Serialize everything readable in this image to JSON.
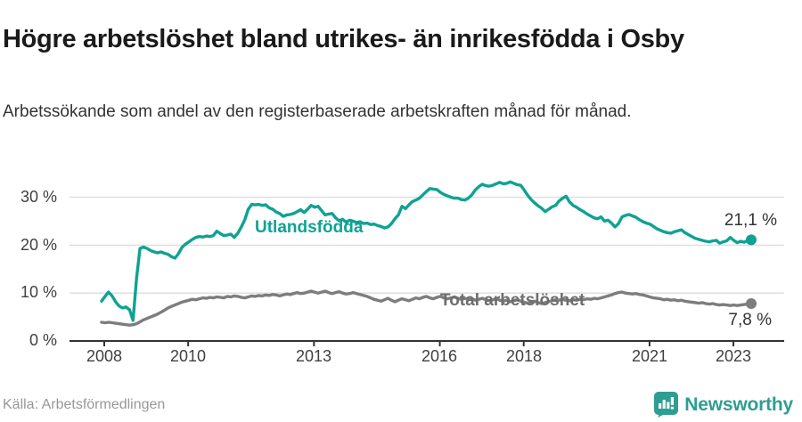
{
  "header": {
    "title": "Högre arbetslöshet bland utrikes- än inrikesfödda i Osby",
    "subtitle": "Arbetssökande som andel av den registerbaserade arbetskraften månad för månad."
  },
  "footer": {
    "source": "Källa: Arbetsförmedlingen",
    "brand_name": "Newsworthy"
  },
  "colors": {
    "series_foreign_born": "#0fa294",
    "series_total": "#7d7d7d",
    "axis": "#333333",
    "gridline": "#dcdcdc",
    "brand_teal": "#2e9d92"
  },
  "chart_data": {
    "type": "line",
    "title": "Högre arbetslöshet bland utrikes- än inrikesfödda i Osby",
    "subtitle": "Arbetssökande som andel av den registerbaserade arbetskraften månad för månad.",
    "x_start": "2008-01",
    "x_end": "2023-07",
    "frequency": "monthly",
    "grid": "horizontal",
    "ylim": [
      0,
      36
    ],
    "y_ticks": [
      0,
      10,
      20,
      30
    ],
    "y_tick_labels": [
      "0 %",
      "10 %",
      "20 %",
      "30 %"
    ],
    "x_tick_years": [
      2008,
      2010,
      2013,
      2016,
      2018,
      2021,
      2023
    ],
    "x_tick_labels": [
      "2008",
      "2010",
      "2013",
      "2016",
      "2018",
      "2021",
      "2023"
    ],
    "series": [
      {
        "name": "Utlandsfödda",
        "end_label": "21,1 %",
        "last_value": 21.1,
        "values": [
          8.3,
          9.3,
          10.2,
          9.4,
          8.2,
          7.3,
          6.9,
          7.1,
          6.5,
          4.3,
          13.0,
          19.3,
          19.6,
          19.3,
          18.9,
          18.6,
          18.4,
          18.6,
          18.3,
          18.1,
          17.6,
          17.3,
          18.2,
          19.5,
          20.2,
          20.7,
          21.2,
          21.6,
          21.8,
          21.7,
          21.9,
          21.8,
          22.0,
          22.9,
          22.4,
          22.0,
          22.1,
          22.3,
          21.6,
          22.5,
          23.8,
          25.3,
          27.5,
          28.5,
          28.4,
          28.5,
          28.3,
          28.4,
          27.8,
          27.5,
          26.9,
          26.6,
          26.0,
          26.3,
          26.4,
          26.6,
          27.0,
          27.4,
          26.8,
          27.5,
          28.3,
          27.9,
          28.1,
          27.2,
          26.3,
          26.5,
          26.6,
          25.7,
          25.1,
          25.4,
          24.8,
          25.2,
          25.0,
          24.7,
          24.9,
          24.5,
          24.6,
          24.3,
          24.4,
          24.1,
          23.9,
          23.6,
          23.8,
          24.5,
          25.5,
          26.3,
          28.1,
          27.6,
          28.4,
          29.1,
          29.4,
          29.8,
          30.5,
          31.2,
          31.8,
          31.7,
          31.6,
          31.0,
          30.6,
          30.3,
          30.0,
          29.8,
          29.8,
          29.5,
          29.4,
          29.8,
          30.5,
          31.5,
          32.2,
          32.7,
          32.4,
          32.3,
          32.5,
          32.8,
          33.1,
          32.8,
          32.9,
          33.2,
          32.9,
          32.6,
          32.5,
          31.5,
          30.4,
          29.5,
          28.8,
          28.2,
          27.7,
          27.0,
          27.5,
          28.0,
          28.3,
          29.2,
          29.8,
          30.2,
          29.0,
          28.3,
          27.9,
          27.4,
          27.0,
          26.5,
          26.1,
          25.7,
          25.5,
          25.9,
          25.0,
          25.2,
          24.6,
          23.8,
          24.5,
          25.9,
          26.2,
          26.4,
          26.1,
          25.8,
          25.3,
          24.9,
          24.6,
          24.4,
          23.9,
          23.4,
          23.1,
          22.8,
          22.6,
          22.5,
          22.8,
          23.0,
          23.2,
          22.6,
          22.2,
          21.8,
          21.4,
          21.2,
          21.0,
          20.8,
          20.7,
          20.9,
          21.0,
          20.4,
          20.7,
          20.9,
          21.6,
          21.0,
          20.5,
          20.8,
          20.6,
          21.0,
          21.1
        ]
      },
      {
        "name": "Total arbetslöshet",
        "end_label": "7,8 %",
        "last_value": 7.8,
        "values": [
          3.9,
          3.8,
          3.9,
          3.8,
          3.7,
          3.6,
          3.5,
          3.4,
          3.3,
          3.4,
          3.6,
          4.0,
          4.4,
          4.7,
          5.0,
          5.3,
          5.6,
          6.0,
          6.4,
          6.9,
          7.2,
          7.5,
          7.8,
          8.1,
          8.3,
          8.5,
          8.7,
          8.6,
          8.8,
          9.0,
          8.9,
          9.1,
          9.0,
          9.2,
          9.1,
          9.0,
          9.3,
          9.2,
          9.4,
          9.3,
          9.1,
          9.0,
          9.2,
          9.4,
          9.3,
          9.5,
          9.4,
          9.6,
          9.5,
          9.7,
          9.6,
          9.4,
          9.6,
          9.8,
          9.7,
          9.9,
          10.1,
          9.9,
          10.0,
          10.2,
          10.4,
          10.2,
          10.0,
          10.2,
          10.4,
          10.1,
          9.9,
          10.1,
          10.3,
          10.0,
          9.8,
          9.9,
          10.1,
          9.9,
          9.7,
          9.5,
          9.3,
          9.0,
          8.7,
          8.5,
          8.3,
          8.6,
          8.9,
          8.5,
          8.2,
          8.5,
          8.8,
          8.6,
          8.4,
          8.7,
          9.0,
          8.8,
          9.1,
          9.3,
          9.0,
          8.8,
          9.1,
          9.3,
          9.0,
          8.8,
          9.0,
          9.2,
          8.9,
          8.7,
          8.9,
          8.6,
          8.8,
          8.5,
          8.7,
          8.9,
          8.6,
          8.4,
          8.6,
          8.8,
          8.5,
          8.3,
          8.5,
          8.2,
          8.4,
          8.6,
          8.3,
          8.1,
          7.9,
          8.1,
          8.3,
          8.0,
          7.8,
          8.0,
          8.2,
          8.4,
          8.6,
          8.5,
          8.7,
          8.5,
          8.4,
          8.6,
          8.5,
          8.7,
          8.6,
          8.8,
          8.7,
          8.9,
          8.8,
          9.0,
          9.2,
          9.4,
          9.6,
          9.9,
          10.1,
          10.2,
          10.0,
          9.9,
          9.8,
          9.9,
          9.7,
          9.6,
          9.4,
          9.2,
          9.0,
          8.9,
          8.8,
          8.6,
          8.7,
          8.5,
          8.6,
          8.4,
          8.5,
          8.3,
          8.2,
          8.1,
          8.0,
          7.9,
          8.0,
          7.8,
          7.7,
          7.8,
          7.6,
          7.5,
          7.6,
          7.5,
          7.4,
          7.5,
          7.4,
          7.5,
          7.6,
          7.7,
          7.8
        ]
      }
    ],
    "legend_position": "inline-labels"
  }
}
